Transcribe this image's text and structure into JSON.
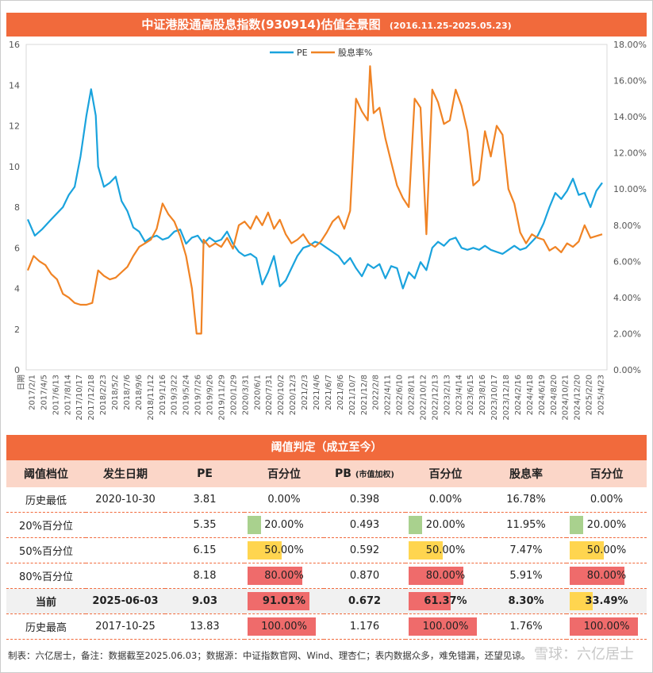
{
  "chart_data": {
    "type": "line",
    "title": "中证港股通高股息指数(930914)估值全景图",
    "subtitle": "(2016.11.25-2025.05.23)",
    "legend_position": "top-center",
    "y_left": {
      "min": 0,
      "max": 16,
      "ticks": [
        "0",
        "2",
        "4",
        "6",
        "8",
        "10",
        "12",
        "14",
        "16"
      ]
    },
    "y_right": {
      "min": 0,
      "max": 18,
      "ticks": [
        "0.00%",
        "2.00%",
        "4.00%",
        "6.00%",
        "8.00%",
        "10.00%",
        "12.00%",
        "14.00%",
        "16.00%",
        "18.00%"
      ]
    },
    "x_axis_title": "日期",
    "x_ticks": [
      "2017/2/1",
      "2017/4/5",
      "2017/6/13",
      "2017/8/14",
      "2017/10/17",
      "2017/12/18",
      "2018/2/23",
      "2018/5/2",
      "2018/7/6",
      "2018/9/6",
      "2018/11/12",
      "2019/1/16",
      "2019/3/22",
      "2019/5/24",
      "2019/7/26",
      "2019/9/26",
      "2019/11/29",
      "2020/1/29",
      "2020/3/31",
      "2020/6/1",
      "2020/7/31",
      "2020/10/2",
      "2020/12/3",
      "2021/2/3",
      "2021/4/6",
      "2021/6/7",
      "2021/8/6",
      "2021/10/7",
      "2021/12/8",
      "2022/2/8",
      "2022/4/11",
      "2022/6/10",
      "2022/8/11",
      "2022/10/12",
      "2022/12/13",
      "2023/2/13",
      "2023/4/14",
      "2023/6/15",
      "2023/8/16",
      "2023/10/17",
      "2023/12/18",
      "2024/2/16",
      "2024/4/18",
      "2024/6/19",
      "2024/8/20",
      "2024/10/21",
      "2024/12/20",
      "2025/2/20",
      "2025/4/23"
    ],
    "series": [
      {
        "name": "PE",
        "color": "#1aa3dd",
        "axis": "left",
        "points": [
          [
            0,
            7.4
          ],
          [
            0.6,
            6.6
          ],
          [
            1.2,
            6.9
          ],
          [
            2,
            7.4
          ],
          [
            3,
            8.0
          ],
          [
            3.5,
            8.6
          ],
          [
            4,
            9.0
          ],
          [
            4.5,
            10.5
          ],
          [
            5,
            12.5
          ],
          [
            5.4,
            13.8
          ],
          [
            5.8,
            12.5
          ],
          [
            6,
            10.0
          ],
          [
            6.5,
            9.0
          ],
          [
            7,
            9.2
          ],
          [
            7.5,
            9.5
          ],
          [
            8,
            8.3
          ],
          [
            8.5,
            7.8
          ],
          [
            9,
            7.0
          ],
          [
            9.5,
            6.8
          ],
          [
            10,
            6.3
          ],
          [
            10.5,
            6.5
          ],
          [
            11,
            6.6
          ],
          [
            11.5,
            6.4
          ],
          [
            12,
            6.5
          ],
          [
            12.5,
            6.8
          ],
          [
            13,
            6.9
          ],
          [
            13.5,
            6.2
          ],
          [
            14,
            6.5
          ],
          [
            14.5,
            6.6
          ],
          [
            15,
            6.2
          ],
          [
            15.5,
            6.5
          ],
          [
            16,
            6.3
          ],
          [
            16.5,
            6.4
          ],
          [
            17,
            6.8
          ],
          [
            17.5,
            6.2
          ],
          [
            18,
            5.8
          ],
          [
            18.5,
            5.6
          ],
          [
            19,
            5.7
          ],
          [
            19.5,
            5.5
          ],
          [
            20,
            4.2
          ],
          [
            20.5,
            4.8
          ],
          [
            21,
            5.6
          ],
          [
            21.5,
            4.1
          ],
          [
            22,
            4.4
          ],
          [
            22.5,
            5.0
          ],
          [
            23,
            5.6
          ],
          [
            23.5,
            6.0
          ],
          [
            24,
            6.1
          ],
          [
            24.5,
            6.3
          ],
          [
            25,
            6.2
          ],
          [
            25.5,
            6.0
          ],
          [
            26,
            5.8
          ],
          [
            26.5,
            5.6
          ],
          [
            27,
            5.2
          ],
          [
            27.5,
            5.5
          ],
          [
            28,
            5.0
          ],
          [
            28.5,
            4.6
          ],
          [
            29,
            5.2
          ],
          [
            29.5,
            5.0
          ],
          [
            30,
            5.2
          ],
          [
            30.5,
            4.5
          ],
          [
            31,
            5.1
          ],
          [
            31.5,
            5.0
          ],
          [
            32,
            4.0
          ],
          [
            32.5,
            4.8
          ],
          [
            33,
            4.5
          ],
          [
            33.5,
            5.3
          ],
          [
            34,
            4.9
          ],
          [
            34.5,
            6.0
          ],
          [
            35,
            6.3
          ],
          [
            35.5,
            6.1
          ],
          [
            36,
            6.4
          ],
          [
            36.5,
            6.5
          ],
          [
            37,
            6.0
          ],
          [
            37.5,
            5.9
          ],
          [
            38,
            6.0
          ],
          [
            38.5,
            5.9
          ],
          [
            39,
            6.1
          ],
          [
            39.5,
            5.9
          ],
          [
            40,
            5.8
          ],
          [
            40.5,
            5.7
          ],
          [
            41,
            5.9
          ],
          [
            41.5,
            6.1
          ],
          [
            42,
            5.9
          ],
          [
            42.5,
            6.0
          ],
          [
            43,
            6.3
          ],
          [
            43.5,
            6.6
          ],
          [
            44,
            7.2
          ],
          [
            44.5,
            8.0
          ],
          [
            45,
            8.7
          ],
          [
            45.5,
            8.4
          ],
          [
            46,
            8.8
          ],
          [
            46.5,
            9.4
          ],
          [
            47,
            8.6
          ],
          [
            47.5,
            8.7
          ],
          [
            48,
            8.0
          ],
          [
            48.5,
            8.8
          ],
          [
            49,
            9.2
          ]
        ]
      },
      {
        "name": "股息率%",
        "color": "#f08324",
        "axis": "right",
        "points": [
          [
            0,
            5.5
          ],
          [
            0.5,
            6.3
          ],
          [
            1,
            6.0
          ],
          [
            1.5,
            5.8
          ],
          [
            2,
            5.3
          ],
          [
            2.5,
            5.0
          ],
          [
            3,
            4.2
          ],
          [
            3.5,
            4.0
          ],
          [
            4,
            3.7
          ],
          [
            4.5,
            3.6
          ],
          [
            5,
            3.6
          ],
          [
            5.5,
            3.7
          ],
          [
            6,
            5.5
          ],
          [
            6.5,
            5.2
          ],
          [
            7,
            5.0
          ],
          [
            7.5,
            5.1
          ],
          [
            8,
            5.4
          ],
          [
            8.5,
            5.7
          ],
          [
            9,
            6.3
          ],
          [
            9.5,
            6.8
          ],
          [
            10,
            7.0
          ],
          [
            10.5,
            7.2
          ],
          [
            11,
            7.8
          ],
          [
            11.5,
            9.2
          ],
          [
            12,
            8.6
          ],
          [
            12.5,
            8.2
          ],
          [
            13,
            7.4
          ],
          [
            13.5,
            6.3
          ],
          [
            14,
            4.5
          ],
          [
            14.4,
            2.0
          ],
          [
            14.8,
            2.0
          ],
          [
            15,
            7.2
          ],
          [
            15.5,
            6.8
          ],
          [
            16,
            7.0
          ],
          [
            16.5,
            6.8
          ],
          [
            17,
            7.3
          ],
          [
            17.5,
            6.7
          ],
          [
            18,
            8.0
          ],
          [
            18.5,
            8.2
          ],
          [
            19,
            7.8
          ],
          [
            19.5,
            8.5
          ],
          [
            20,
            8.0
          ],
          [
            20.5,
            8.7
          ],
          [
            21,
            7.8
          ],
          [
            21.5,
            8.3
          ],
          [
            22,
            7.5
          ],
          [
            22.5,
            7.0
          ],
          [
            23,
            7.2
          ],
          [
            23.5,
            7.5
          ],
          [
            24,
            7.0
          ],
          [
            24.5,
            6.8
          ],
          [
            25,
            7.1
          ],
          [
            25.5,
            7.6
          ],
          [
            26,
            8.2
          ],
          [
            26.5,
            8.5
          ],
          [
            27,
            7.8
          ],
          [
            27.5,
            8.8
          ],
          [
            28,
            15.0
          ],
          [
            28.5,
            14.3
          ],
          [
            29,
            13.8
          ],
          [
            29.2,
            16.8
          ],
          [
            29.5,
            14.2
          ],
          [
            30,
            14.5
          ],
          [
            30.5,
            12.8
          ],
          [
            31,
            11.5
          ],
          [
            31.5,
            10.2
          ],
          [
            32,
            9.5
          ],
          [
            32.5,
            9.0
          ],
          [
            33,
            15.0
          ],
          [
            33.5,
            14.5
          ],
          [
            34,
            7.5
          ],
          [
            34.5,
            15.5
          ],
          [
            35,
            14.8
          ],
          [
            35.5,
            13.6
          ],
          [
            36,
            13.8
          ],
          [
            36.5,
            15.5
          ],
          [
            37,
            14.6
          ],
          [
            37.5,
            13.2
          ],
          [
            38,
            10.2
          ],
          [
            38.5,
            10.5
          ],
          [
            39,
            13.2
          ],
          [
            39.5,
            11.8
          ],
          [
            40,
            13.5
          ],
          [
            40.5,
            13.0
          ],
          [
            41,
            10.0
          ],
          [
            41.5,
            9.2
          ],
          [
            42,
            7.6
          ],
          [
            42.5,
            7.0
          ],
          [
            43,
            7.5
          ],
          [
            43.5,
            7.3
          ],
          [
            44,
            7.2
          ],
          [
            44.5,
            6.6
          ],
          [
            45,
            6.8
          ],
          [
            45.5,
            6.5
          ],
          [
            46,
            7.0
          ],
          [
            46.5,
            6.8
          ],
          [
            47,
            7.1
          ],
          [
            47.5,
            8.0
          ],
          [
            48,
            7.3
          ],
          [
            48.5,
            7.4
          ],
          [
            49,
            7.5
          ]
        ]
      }
    ]
  },
  "table": {
    "title": "阈值判定（成立至今）",
    "headers": {
      "level": "阈值档位",
      "date": "发生日期",
      "pe": "PE",
      "pe_pct": "百分位",
      "pb": "PB",
      "pb_note": "(市值加权)",
      "pb_pct": "百分位",
      "dy": "股息率",
      "dy_pct": "百分位"
    },
    "rows": [
      {
        "level": "历史最低",
        "date": "2020-10-30",
        "pe": "3.81",
        "pe_pct": "0.00%",
        "pe_pct_v": 0.0,
        "pb": "0.398",
        "pb_pct": "0.00%",
        "pb_pct_v": 0.0,
        "dy": "16.78%",
        "dy_pct": "0.00%",
        "dy_pct_v": 0.0,
        "current": false
      },
      {
        "level": "20%百分位",
        "date": "",
        "pe": "5.35",
        "pe_pct": "20.00%",
        "pe_pct_v": 20.0,
        "pb": "0.493",
        "pb_pct": "20.00%",
        "pb_pct_v": 20.0,
        "dy": "11.95%",
        "dy_pct": "20.00%",
        "dy_pct_v": 20.0,
        "current": false
      },
      {
        "level": "50%百分位",
        "date": "",
        "pe": "6.15",
        "pe_pct": "50.00%",
        "pe_pct_v": 50.0,
        "pb": "0.592",
        "pb_pct": "50.00%",
        "pb_pct_v": 50.0,
        "dy": "7.47%",
        "dy_pct": "50.00%",
        "dy_pct_v": 50.0,
        "current": false
      },
      {
        "level": "80%百分位",
        "date": "",
        "pe": "8.18",
        "pe_pct": "80.00%",
        "pe_pct_v": 80.0,
        "pb": "0.870",
        "pb_pct": "80.00%",
        "pb_pct_v": 80.0,
        "dy": "5.91%",
        "dy_pct": "80.00%",
        "dy_pct_v": 80.0,
        "current": false
      },
      {
        "level": "当前",
        "date": "2025-06-03",
        "pe": "9.03",
        "pe_pct": "91.01%",
        "pe_pct_v": 91.01,
        "pb": "0.672",
        "pb_pct": "61.37%",
        "pb_pct_v": 61.37,
        "dy": "8.30%",
        "dy_pct": "33.49%",
        "dy_pct_v": 33.49,
        "current": true
      },
      {
        "level": "历史最高",
        "date": "2017-10-25",
        "pe": "13.83",
        "pe_pct": "100.00%",
        "pe_pct_v": 100.0,
        "pb": "1.176",
        "pb_pct": "100.00%",
        "pb_pct_v": 100.0,
        "dy": "1.76%",
        "dy_pct": "100.00%",
        "dy_pct_v": 100.0,
        "current": false
      }
    ],
    "bar_colors": {
      "low": "#a9d18e",
      "mid": "#ffd54f",
      "high": "#ef6b6b"
    }
  },
  "footer": "制表：六亿居士，备注：数据截至2025.06.03；数据源：中证指数官网、Wind、理杏仁；表内数据众多，难免错漏，还望见谅。",
  "watermark": "雪球：六亿居士"
}
